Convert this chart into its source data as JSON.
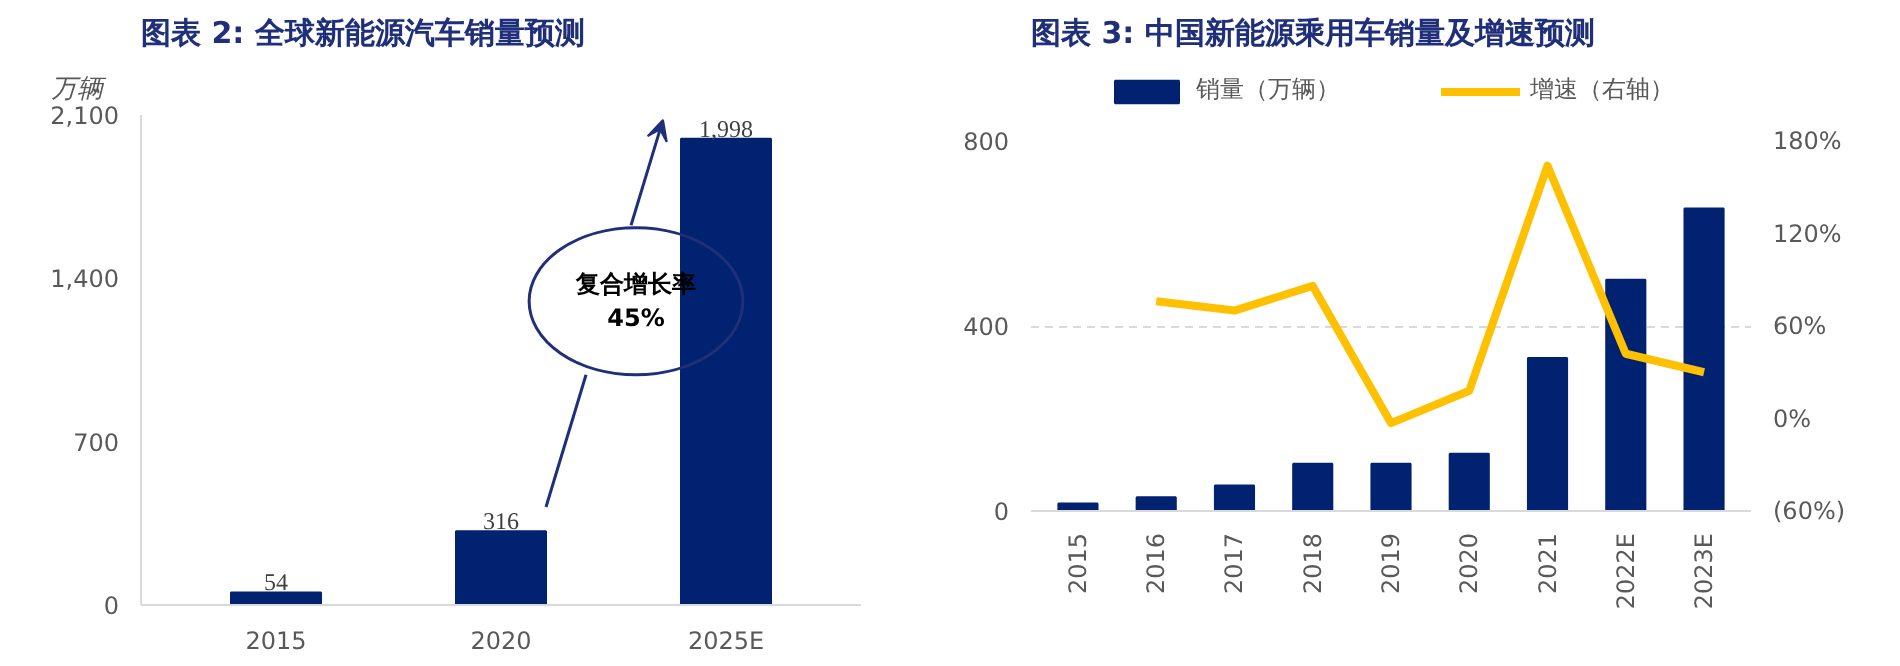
{
  "chart_data": [
    {
      "type": "bar",
      "title": "图表 2: 全球新能源汽车销量预测",
      "ylabel": "万辆",
      "categories": [
        "2015",
        "2020",
        "2025E"
      ],
      "series": [
        {
          "color": "#002270",
          "values": [
            54,
            316,
            1998
          ],
          "value_labels": [
            "54",
            "316",
            "1,998"
          ]
        }
      ],
      "ylim": [
        0,
        2100
      ],
      "yticks": [
        0,
        {
          "value": 700,
          "label": "700"
        },
        {
          "value": 1400,
          "label": "1,400"
        },
        {
          "value": 2100,
          "label": "2,100"
        }
      ],
      "grid": false,
      "legend": false,
      "annotations": [
        "复合增长率\n45%"
      ]
    },
    {
      "type": "bar",
      "title": "图表 3: 中国新能源乘用车销量及增速预测",
      "categories": [
        "2015",
        "2016",
        "2017",
        "2018",
        "2019",
        "2020",
        "2021",
        "2022E",
        "2023E"
      ],
      "series": [
        {
          "name": "销量（万辆）",
          "type": "bar",
          "color": "#002270",
          "values": [
            16,
            30,
            55,
            102,
            102,
            124,
            331,
            500,
            654
          ]
        },
        {
          "name": "增速（右轴）",
          "type": "line",
          "axis": "y2",
          "color": "#ffc000",
          "values": [
            null,
            76,
            70,
            86,
            -3,
            18,
            164,
            42,
            30
          ]
        }
      ],
      "ylim": [
        0,
        800
      ],
      "yticks": [
        0,
        400,
        800
      ],
      "y2lim": [
        -60,
        180
      ],
      "y2ticks": [
        {
          "value": -60,
          "label": "(60%)"
        },
        {
          "value": 0,
          "label": "0%"
        },
        {
          "value": 60,
          "label": "60%"
        },
        {
          "value": 120,
          "label": "120%"
        },
        {
          "value": 180,
          "label": "180%"
        }
      ],
      "grid": "y",
      "legend": "top"
    }
  ]
}
